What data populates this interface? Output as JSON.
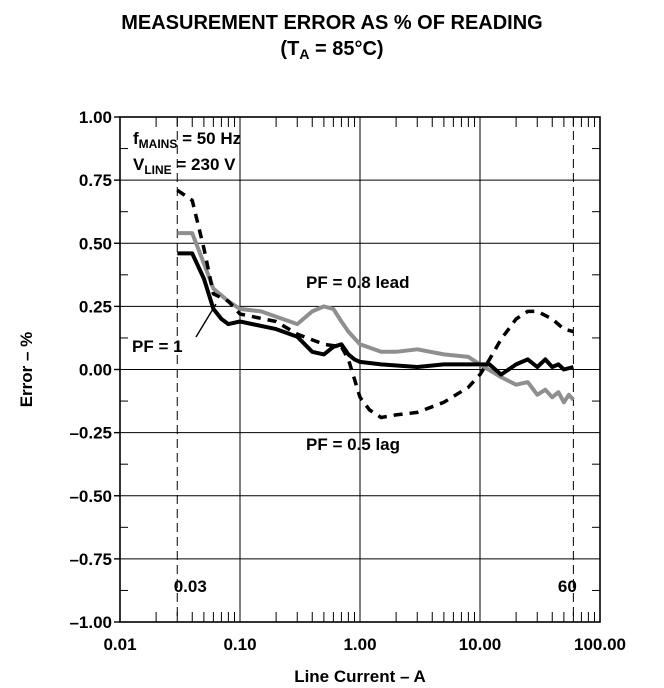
{
  "chart_data": {
    "type": "line",
    "title": "MEASUREMENT ERROR AS % OF READING",
    "subtitle": {
      "prefix": "(T",
      "sub": "A",
      "suffix": " = 85°C)"
    },
    "xlabel": "Line Current – A",
    "ylabel": "Error – %",
    "x_scale": "log",
    "xlim": [
      0.01,
      100
    ],
    "ylim": [
      -1.0,
      1.0
    ],
    "x_ticks": [
      {
        "value": 0.01,
        "label": "0.01"
      },
      {
        "value": 0.1,
        "label": "0.10"
      },
      {
        "value": 1,
        "label": "1.00"
      },
      {
        "value": 10,
        "label": "10.00"
      },
      {
        "value": 100,
        "label": "100.00"
      }
    ],
    "y_ticks": [
      {
        "value": 1.0,
        "label": "1.00"
      },
      {
        "value": 0.75,
        "label": "0.75"
      },
      {
        "value": 0.5,
        "label": "0.50"
      },
      {
        "value": 0.25,
        "label": "0.25"
      },
      {
        "value": 0.0,
        "label": "0.00"
      },
      {
        "value": -0.25,
        "label": "–0.25"
      },
      {
        "value": -0.5,
        "label": "–0.50"
      },
      {
        "value": -0.75,
        "label": "–0.75"
      },
      {
        "value": -1.0,
        "label": "–1.00"
      }
    ],
    "grid": true,
    "reference_lines": [
      {
        "x": 0.03,
        "label": "0.03"
      },
      {
        "x": 60,
        "label": "60"
      }
    ],
    "conditions": [
      {
        "prefix": "f",
        "sub": "MAINS",
        "suffix": " = 50 Hz"
      },
      {
        "prefix": "V",
        "sub": "LINE",
        "suffix": " = 230 V"
      }
    ],
    "series": [
      {
        "name": "PF = 1",
        "color": "#000000",
        "style": "solid",
        "points": [
          [
            0.03,
            0.46
          ],
          [
            0.04,
            0.46
          ],
          [
            0.05,
            0.36
          ],
          [
            0.06,
            0.24
          ],
          [
            0.07,
            0.2
          ],
          [
            0.08,
            0.18
          ],
          [
            0.1,
            0.19
          ],
          [
            0.2,
            0.16
          ],
          [
            0.3,
            0.13
          ],
          [
            0.4,
            0.07
          ],
          [
            0.5,
            0.06
          ],
          [
            0.6,
            0.09
          ],
          [
            0.7,
            0.1
          ],
          [
            0.8,
            0.06
          ],
          [
            0.9,
            0.04
          ],
          [
            1.0,
            0.03
          ],
          [
            1.5,
            0.02
          ],
          [
            3,
            0.01
          ],
          [
            5,
            0.02
          ],
          [
            8,
            0.02
          ],
          [
            10,
            0.02
          ],
          [
            12,
            0.02
          ],
          [
            15,
            -0.02
          ],
          [
            20,
            0.02
          ],
          [
            25,
            0.04
          ],
          [
            30,
            0.01
          ],
          [
            35,
            0.04
          ],
          [
            40,
            0.01
          ],
          [
            45,
            0.02
          ],
          [
            50,
            0.0
          ],
          [
            60,
            0.01
          ]
        ]
      },
      {
        "name": "PF = 0.8 lead",
        "color": "#8f8f8f",
        "style": "solid",
        "points": [
          [
            0.03,
            0.54
          ],
          [
            0.04,
            0.54
          ],
          [
            0.05,
            0.42
          ],
          [
            0.06,
            0.32
          ],
          [
            0.08,
            0.27
          ],
          [
            0.1,
            0.24
          ],
          [
            0.15,
            0.23
          ],
          [
            0.3,
            0.18
          ],
          [
            0.4,
            0.23
          ],
          [
            0.5,
            0.25
          ],
          [
            0.6,
            0.24
          ],
          [
            0.7,
            0.19
          ],
          [
            0.8,
            0.15
          ],
          [
            1.0,
            0.1
          ],
          [
            1.5,
            0.07
          ],
          [
            2,
            0.07
          ],
          [
            3,
            0.08
          ],
          [
            5,
            0.06
          ],
          [
            8,
            0.05
          ],
          [
            10,
            0.02
          ],
          [
            15,
            -0.03
          ],
          [
            20,
            -0.06
          ],
          [
            25,
            -0.05
          ],
          [
            30,
            -0.1
          ],
          [
            35,
            -0.08
          ],
          [
            40,
            -0.11
          ],
          [
            45,
            -0.09
          ],
          [
            50,
            -0.13
          ],
          [
            55,
            -0.1
          ],
          [
            60,
            -0.12
          ]
        ]
      },
      {
        "name": "PF = 0.5 lag",
        "color": "#000000",
        "style": "dashed",
        "points": [
          [
            0.03,
            0.71
          ],
          [
            0.04,
            0.67
          ],
          [
            0.05,
            0.48
          ],
          [
            0.06,
            0.3
          ],
          [
            0.08,
            0.27
          ],
          [
            0.1,
            0.22
          ],
          [
            0.2,
            0.19
          ],
          [
            0.3,
            0.14
          ],
          [
            0.5,
            0.1
          ],
          [
            0.7,
            0.09
          ],
          [
            0.8,
            0.04
          ],
          [
            1.0,
            -0.11
          ],
          [
            1.2,
            -0.16
          ],
          [
            1.5,
            -0.19
          ],
          [
            2,
            -0.18
          ],
          [
            3,
            -0.17
          ],
          [
            5,
            -0.13
          ],
          [
            8,
            -0.07
          ],
          [
            10,
            -0.02
          ],
          [
            12,
            0.04
          ],
          [
            15,
            0.12
          ],
          [
            20,
            0.2
          ],
          [
            25,
            0.23
          ],
          [
            30,
            0.23
          ],
          [
            40,
            0.2
          ],
          [
            50,
            0.16
          ],
          [
            60,
            0.15
          ]
        ]
      }
    ],
    "annotations": [
      {
        "text": "PF = 0.8 lead"
      },
      {
        "text": "PF = 1"
      },
      {
        "text": "PF = 0.5 lag"
      }
    ]
  }
}
